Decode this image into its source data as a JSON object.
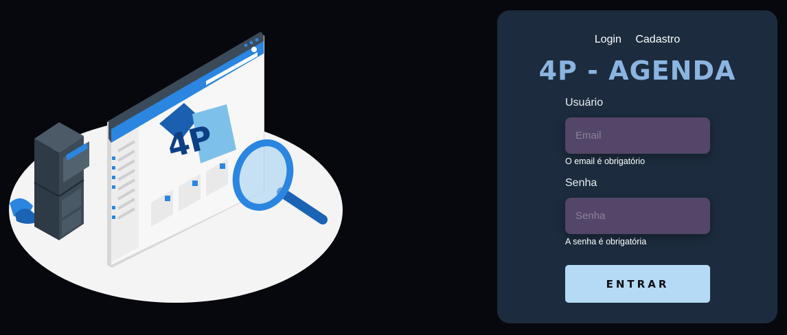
{
  "nav": {
    "login_label": "Login",
    "signup_label": "Cadastro"
  },
  "app_title": "4P - AGENDA",
  "form": {
    "user_label": "Usuário",
    "email_placeholder": "Email",
    "email_value": "",
    "email_error": "O email é obrigatório",
    "password_label": "Senha",
    "password_placeholder": "Senha",
    "password_value": "",
    "password_error": "A senha é obrigatória",
    "submit_label": "ENTRAR"
  },
  "illustration": {
    "logo_text": "4P",
    "icons": [
      "filing-cabinet-icon",
      "browser-window-icon",
      "magnifier-icon",
      "plant-icon"
    ]
  },
  "colors": {
    "background": "#07080d",
    "card": "#1c2c3e",
    "title": "#8bb5e0",
    "input": "#534668",
    "button": "#b5daf5",
    "accent_blue": "#2a86e0"
  }
}
